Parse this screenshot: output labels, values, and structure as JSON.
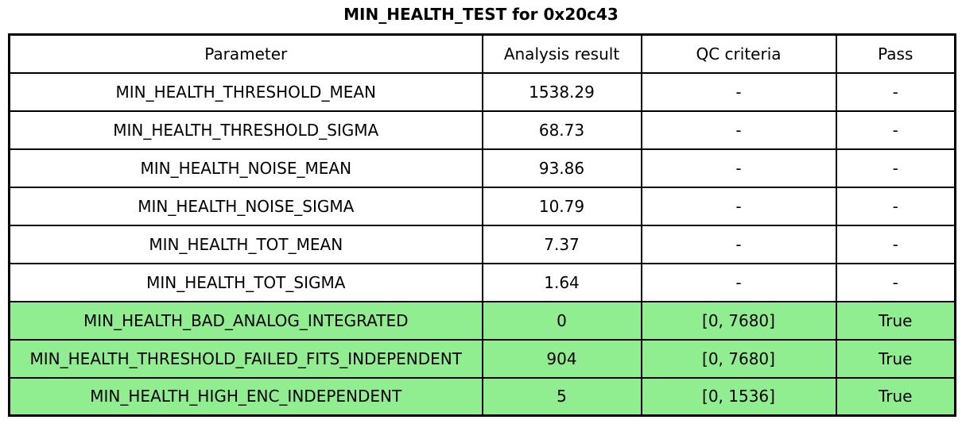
{
  "chart_data": {
    "type": "table",
    "title": "MIN_HEALTH_TEST for 0x20c43",
    "columns": [
      "Parameter",
      "Analysis result",
      "QC criteria",
      "Pass"
    ],
    "rows": [
      {
        "cells": [
          "MIN_HEALTH_THRESHOLD_MEAN",
          "1538.29",
          "-",
          "-"
        ],
        "highlighted": false
      },
      {
        "cells": [
          "MIN_HEALTH_THRESHOLD_SIGMA",
          "68.73",
          "-",
          "-"
        ],
        "highlighted": false
      },
      {
        "cells": [
          "MIN_HEALTH_NOISE_MEAN",
          "93.86",
          "-",
          "-"
        ],
        "highlighted": false
      },
      {
        "cells": [
          "MIN_HEALTH_NOISE_SIGMA",
          "10.79",
          "-",
          "-"
        ],
        "highlighted": false
      },
      {
        "cells": [
          "MIN_HEALTH_TOT_MEAN",
          "7.37",
          "-",
          "-"
        ],
        "highlighted": false
      },
      {
        "cells": [
          "MIN_HEALTH_TOT_SIGMA",
          "1.64",
          "-",
          "-"
        ],
        "highlighted": false
      },
      {
        "cells": [
          "MIN_HEALTH_BAD_ANALOG_INTEGRATED",
          "0",
          "[0, 7680]",
          "True"
        ],
        "highlighted": true
      },
      {
        "cells": [
          "MIN_HEALTH_THRESHOLD_FAILED_FITS_INDEPENDENT",
          "904",
          "[0, 7680]",
          "True"
        ],
        "highlighted": true
      },
      {
        "cells": [
          "MIN_HEALTH_HIGH_ENC_INDEPENDENT",
          "5",
          "[0, 1536]",
          "True"
        ],
        "highlighted": true
      }
    ],
    "layout": {
      "legend": "none",
      "grid": "full-cell-borders",
      "highlighted_row_indices": [
        6,
        7,
        8
      ]
    },
    "colors": {
      "highlight_row_background": "#90ee90",
      "border": "#000000",
      "text": "#000000",
      "background": "#ffffff"
    }
  }
}
